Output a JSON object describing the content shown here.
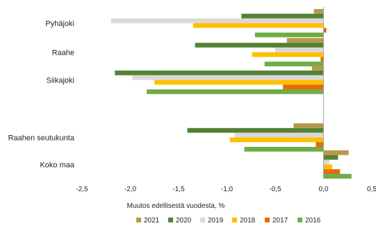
{
  "chart_data": {
    "type": "bar",
    "orientation": "horizontal",
    "title": "",
    "xlabel": "Muutos edellisestä vuodesta, %",
    "ylabel": "",
    "xlim": [
      -2.5,
      0.5
    ],
    "xticks": [
      "-2,5",
      "-2,0",
      "-1,5",
      "-1,0",
      "-0,5",
      "0,0",
      "0,5"
    ],
    "categories": [
      "Pyhäjoki",
      "Raahe",
      "Siikajoki",
      "Raahen seutukunta",
      "Koko maa"
    ],
    "grid": false,
    "legend_position": "bottom",
    "series": [
      {
        "name": "2021",
        "color": "#B59A4A",
        "values": [
          -0.1,
          -0.38,
          -0.12,
          -0.31,
          0.26
        ]
      },
      {
        "name": "2020",
        "color": "#548235",
        "values": [
          -0.85,
          -1.33,
          -2.16,
          -1.41,
          0.15
        ]
      },
      {
        "name": "2019",
        "color": "#D9D9D9",
        "values": [
          -2.2,
          -0.5,
          -1.98,
          -0.92,
          0.06
        ]
      },
      {
        "name": "2018",
        "color": "#FFC000",
        "values": [
          -1.35,
          -0.74,
          -1.75,
          -0.97,
          0.09
        ]
      },
      {
        "name": "2017",
        "color": "#E36C09",
        "values": [
          0.03,
          -0.03,
          -0.42,
          -0.08,
          0.17
        ]
      },
      {
        "name": "2016",
        "color": "#70AD47",
        "values": [
          -0.71,
          -0.61,
          -1.83,
          -0.82,
          0.29
        ]
      }
    ]
  }
}
